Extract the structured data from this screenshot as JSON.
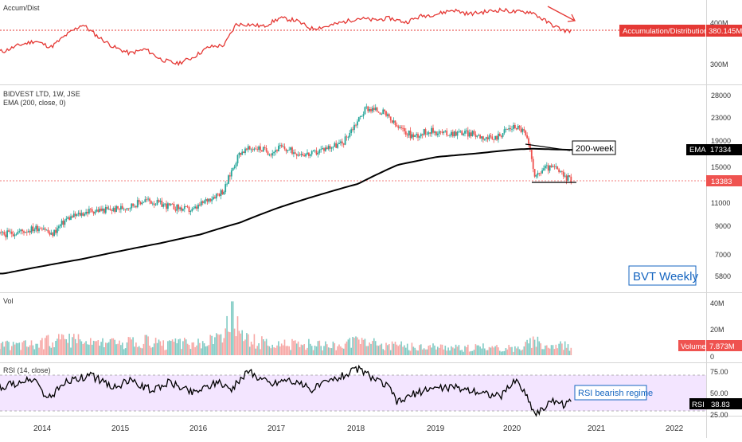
{
  "panes": {
    "accum": {
      "label": "Accum/Dist",
      "value_label": "Accumulation/Distribution",
      "value": "380.145M",
      "ticks": [
        "400M",
        "300M"
      ]
    },
    "price": {
      "label": "BIDVEST LTD, 1W, JSE",
      "sublabel": "EMA (200, close, 0)",
      "ticks": [
        "28000",
        "23000",
        "19000",
        "15000",
        "11000",
        "9000",
        "7000",
        "5800"
      ],
      "ema_tag": "EMA",
      "ema_value": "17334",
      "last_price": "13383",
      "annotation_200": "200-week",
      "title_box": "BVT Weekly"
    },
    "volume": {
      "label": "Vol",
      "ticks": [
        "40M",
        "20M",
        "0"
      ],
      "value_label": "Volume",
      "value": "7.873M"
    },
    "rsi": {
      "label": "RSI (14, close)",
      "ticks": [
        "75.00",
        "50.00",
        "25.00"
      ],
      "tag": "RSI",
      "value": "38.83",
      "annotation": "RSI bearish regime"
    }
  },
  "x_axis": {
    "labels": [
      "2014",
      "2015",
      "2016",
      "2017",
      "2018",
      "2019",
      "2020",
      "2021",
      "2022"
    ]
  },
  "colors": {
    "ad_line": "#e53935",
    "price_up": "#26a69a",
    "price_down": "#ef5350",
    "ema": "#000000",
    "rsi_band": "#f3e5ff",
    "rsi_line": "#000000",
    "title_box_text": "#1565c0",
    "volume_tag": "#ef5350",
    "last_price_tag": "#ef5350"
  },
  "chart_data": [
    {
      "type": "line",
      "name": "Accum/Dist",
      "unit": "M",
      "x": [
        "2013.5",
        "2013.7",
        "2013.9",
        "2014.1",
        "2014.3",
        "2014.5",
        "2014.7",
        "2014.9",
        "2015.1",
        "2015.3",
        "2015.5",
        "2015.7",
        "2015.9",
        "2016.1",
        "2016.3",
        "2016.45",
        "2016.6",
        "2016.8",
        "2017.0",
        "2017.2",
        "2017.4",
        "2017.6",
        "2017.8",
        "2018.0",
        "2018.2",
        "2018.4",
        "2018.6",
        "2018.8",
        "2019.0",
        "2019.2",
        "2019.4",
        "2019.6",
        "2019.8",
        "2020.0",
        "2020.2",
        "2020.4",
        "2020.6",
        "2020.7"
      ],
      "y": [
        330,
        345,
        355,
        340,
        370,
        395,
        365,
        340,
        325,
        335,
        310,
        300,
        315,
        340,
        345,
        395,
        395,
        390,
        410,
        405,
        385,
        390,
        400,
        410,
        405,
        410,
        400,
        415,
        420,
        430,
        420,
        425,
        430,
        425,
        425,
        400,
        380,
        380
      ]
    },
    {
      "type": "line",
      "name": "BIDVEST LTD",
      "x": [
        "2013.5",
        "2013.8",
        "2014.0",
        "2014.1",
        "2014.3",
        "2014.6",
        "2014.9",
        "2015.1",
        "2015.3",
        "2015.6",
        "2015.9",
        "2016.1",
        "2016.3",
        "2016.5",
        "2016.7",
        "2016.9",
        "2017.0",
        "2017.2",
        "2017.4",
        "2017.6",
        "2017.8",
        "2018.0",
        "2018.1",
        "2018.3",
        "2018.5",
        "2018.7",
        "2018.9",
        "2019.1",
        "2019.3",
        "2019.5",
        "2019.7",
        "2019.9",
        "2020.0",
        "2020.1",
        "2020.15",
        "2020.25",
        "2020.35",
        "2020.5",
        "2020.6",
        "2020.7"
      ],
      "y": [
        8300,
        8600,
        8900,
        8200,
        9500,
        10200,
        10300,
        10600,
        11200,
        10600,
        10200,
        11300,
        12200,
        17000,
        17700,
        16900,
        17700,
        17000,
        16600,
        17700,
        18300,
        22500,
        25000,
        24200,
        21000,
        19500,
        20500,
        20000,
        20200,
        19800,
        18900,
        20800,
        21300,
        20400,
        18500,
        13500,
        14800,
        14800,
        13800,
        13383
      ]
    },
    {
      "type": "line",
      "name": "EMA (200, close, 0)",
      "x": [
        "2013.5",
        "2014.0",
        "2014.5",
        "2015.0",
        "2015.5",
        "2016.0",
        "2016.5",
        "2017.0",
        "2017.5",
        "2018.0",
        "2018.5",
        "2019.0",
        "2019.5",
        "2020.0",
        "2020.2",
        "2020.7"
      ],
      "y": [
        5900,
        6300,
        6700,
        7200,
        7700,
        8300,
        9200,
        10500,
        11700,
        12900,
        15200,
        16300,
        16800,
        17400,
        17500,
        17334
      ]
    },
    {
      "type": "bar",
      "name": "Vol",
      "unit": "M",
      "x": [
        "2013.5",
        "2014.0",
        "2014.2",
        "2014.5",
        "2014.8",
        "2015.0",
        "2015.3",
        "2015.5",
        "2015.8",
        "2016.0",
        "2016.3",
        "2016.4",
        "2016.45",
        "2016.5",
        "2016.7",
        "2017.0",
        "2017.3",
        "2017.6",
        "2018.0",
        "2018.3",
        "2018.6",
        "2019.0",
        "2019.3",
        "2019.6",
        "2020.0",
        "2020.2",
        "2020.4",
        "2020.7"
      ],
      "y": [
        9,
        11,
        14,
        12,
        10,
        10,
        13,
        9,
        11,
        10,
        15,
        41,
        25,
        20,
        12,
        9,
        10,
        8,
        12,
        9,
        8,
        7,
        6,
        7,
        6,
        12,
        9,
        7.873
      ]
    },
    {
      "type": "line",
      "name": "RSI (14, close)",
      "x": [
        "2013.5",
        "2013.7",
        "2013.9",
        "2014.05",
        "2014.3",
        "2014.6",
        "2014.9",
        "2015.1",
        "2015.4",
        "2015.6",
        "2015.9",
        "2016.2",
        "2016.4",
        "2016.6",
        "2016.9",
        "2017.1",
        "2017.4",
        "2017.7",
        "2018.0",
        "2018.1",
        "2018.4",
        "2018.5",
        "2018.7",
        "2018.9",
        "2019.2",
        "2019.5",
        "2019.8",
        "2020.0",
        "2020.1",
        "2020.25",
        "2020.35",
        "2020.5",
        "2020.6",
        "2020.7"
      ],
      "y": [
        57,
        62,
        65,
        42,
        63,
        70,
        56,
        64,
        52,
        63,
        50,
        62,
        55,
        75,
        60,
        66,
        54,
        66,
        78,
        72,
        55,
        38,
        48,
        55,
        56,
        52,
        45,
        65,
        52,
        25,
        32,
        42,
        36,
        38.83
      ]
    }
  ]
}
